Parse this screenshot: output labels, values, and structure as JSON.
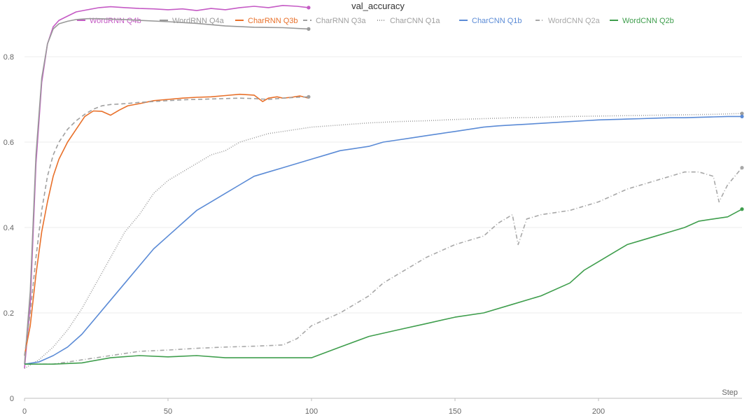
{
  "chart_data": {
    "type": "line",
    "title": "val_accuracy",
    "xlabel": "Step",
    "ylabel": "",
    "xlim": [
      0,
      250
    ],
    "ylim": [
      0,
      0.9
    ],
    "x_ticks": [
      0,
      50,
      100,
      150,
      200
    ],
    "y_ticks": [
      0,
      0.2,
      0.4,
      0.6,
      0.8
    ],
    "grid": "horizontal",
    "legend_position": "top",
    "series": [
      {
        "name": "WordRNN Q4b",
        "color": "#c55bc5",
        "dash": "solid",
        "end_marker": true,
        "x": [
          0,
          2,
          4,
          6,
          8,
          10,
          12,
          15,
          18,
          22,
          26,
          30,
          35,
          40,
          45,
          50,
          55,
          60,
          65,
          70,
          75,
          80,
          85,
          90,
          95,
          99
        ],
        "y": [
          0.07,
          0.22,
          0.55,
          0.74,
          0.83,
          0.87,
          0.885,
          0.895,
          0.905,
          0.91,
          0.915,
          0.917,
          0.915,
          0.913,
          0.912,
          0.91,
          0.912,
          0.908,
          0.913,
          0.91,
          0.915,
          0.918,
          0.915,
          0.92,
          0.918,
          0.915
        ]
      },
      {
        "name": "WordRNN Q4a",
        "color": "#999999",
        "dash": "solid",
        "end_marker": true,
        "x": [
          0,
          2,
          4,
          6,
          8,
          10,
          12,
          15,
          18,
          22,
          26,
          30,
          35,
          40,
          50,
          60,
          70,
          80,
          90,
          99
        ],
        "y": [
          0.08,
          0.25,
          0.57,
          0.75,
          0.83,
          0.865,
          0.877,
          0.883,
          0.887,
          0.889,
          0.889,
          0.888,
          0.887,
          0.885,
          0.882,
          0.878,
          0.872,
          0.869,
          0.868,
          0.865
        ]
      },
      {
        "name": "CharRNN Q3b",
        "color": "#e8702a",
        "dash": "solid",
        "end_marker": false,
        "x": [
          0,
          2,
          4,
          6,
          8,
          10,
          12,
          15,
          18,
          21,
          24,
          27,
          30,
          33,
          36,
          40,
          45,
          50,
          55,
          60,
          65,
          70,
          75,
          80,
          83,
          85,
          88,
          90,
          93,
          96,
          99
        ],
        "y": [
          0.1,
          0.17,
          0.29,
          0.39,
          0.46,
          0.52,
          0.56,
          0.6,
          0.63,
          0.66,
          0.673,
          0.672,
          0.663,
          0.675,
          0.685,
          0.69,
          0.697,
          0.7,
          0.703,
          0.705,
          0.706,
          0.709,
          0.712,
          0.71,
          0.695,
          0.703,
          0.706,
          0.703,
          0.705,
          0.708,
          0.703
        ]
      },
      {
        "name": "CharRNN Q3a",
        "color": "#a0a0a0",
        "dash": "6,4",
        "end_marker": true,
        "x": [
          0,
          2,
          4,
          6,
          8,
          10,
          12,
          15,
          18,
          21,
          24,
          27,
          30,
          35,
          40,
          45,
          50,
          55,
          60,
          65,
          70,
          75,
          80,
          85,
          90,
          95,
          99
        ],
        "y": [
          0.1,
          0.2,
          0.33,
          0.44,
          0.52,
          0.57,
          0.6,
          0.63,
          0.65,
          0.665,
          0.677,
          0.685,
          0.688,
          0.69,
          0.693,
          0.695,
          0.697,
          0.699,
          0.7,
          0.701,
          0.702,
          0.703,
          0.702,
          0.7,
          0.703,
          0.705,
          0.706
        ]
      },
      {
        "name": "CharCNN Q1a",
        "color": "#9e9e9e",
        "dash": "1,2",
        "end_marker": true,
        "x": [
          0,
          5,
          10,
          15,
          20,
          25,
          30,
          35,
          40,
          45,
          50,
          55,
          60,
          65,
          70,
          75,
          80,
          85,
          90,
          95,
          100,
          110,
          120,
          130,
          140,
          150,
          160,
          170,
          180,
          190,
          200,
          210,
          220,
          230,
          240,
          250
        ],
        "y": [
          0.07,
          0.09,
          0.12,
          0.16,
          0.21,
          0.27,
          0.33,
          0.39,
          0.43,
          0.48,
          0.51,
          0.53,
          0.55,
          0.57,
          0.58,
          0.6,
          0.61,
          0.62,
          0.625,
          0.63,
          0.635,
          0.64,
          0.645,
          0.648,
          0.65,
          0.653,
          0.655,
          0.657,
          0.658,
          0.66,
          0.661,
          0.662,
          0.663,
          0.664,
          0.665,
          0.667
        ]
      },
      {
        "name": "CharCNN Q1b",
        "color": "#5b8bd6",
        "dash": "solid",
        "end_marker": true,
        "x": [
          0,
          5,
          10,
          15,
          20,
          25,
          30,
          35,
          40,
          45,
          50,
          55,
          60,
          65,
          70,
          75,
          80,
          85,
          90,
          95,
          100,
          105,
          110,
          115,
          120,
          125,
          130,
          135,
          140,
          145,
          150,
          155,
          160,
          165,
          170,
          175,
          180,
          185,
          190,
          195,
          200,
          205,
          210,
          215,
          220,
          225,
          230,
          235,
          240,
          245,
          250
        ],
        "y": [
          0.08,
          0.085,
          0.1,
          0.12,
          0.15,
          0.19,
          0.23,
          0.27,
          0.31,
          0.35,
          0.38,
          0.41,
          0.44,
          0.46,
          0.48,
          0.5,
          0.52,
          0.53,
          0.54,
          0.55,
          0.56,
          0.57,
          0.58,
          0.585,
          0.59,
          0.6,
          0.605,
          0.61,
          0.615,
          0.62,
          0.625,
          0.63,
          0.635,
          0.638,
          0.64,
          0.642,
          0.644,
          0.646,
          0.648,
          0.65,
          0.652,
          0.653,
          0.654,
          0.655,
          0.656,
          0.657,
          0.657,
          0.658,
          0.659,
          0.66,
          0.66
        ]
      },
      {
        "name": "WordCNN Q2a",
        "color": "#a8a8a8",
        "dash": "6,3,1,3",
        "end_marker": true,
        "x": [
          0,
          10,
          20,
          30,
          40,
          50,
          60,
          70,
          80,
          90,
          95,
          100,
          110,
          120,
          125,
          130,
          135,
          140,
          150,
          160,
          165,
          170,
          172,
          175,
          180,
          190,
          200,
          210,
          220,
          230,
          235,
          240,
          242,
          245,
          250
        ],
        "y": [
          0.08,
          0.08,
          0.09,
          0.1,
          0.11,
          0.113,
          0.117,
          0.12,
          0.122,
          0.125,
          0.14,
          0.17,
          0.2,
          0.24,
          0.27,
          0.29,
          0.31,
          0.33,
          0.36,
          0.38,
          0.41,
          0.43,
          0.36,
          0.42,
          0.43,
          0.44,
          0.46,
          0.49,
          0.51,
          0.53,
          0.53,
          0.52,
          0.46,
          0.5,
          0.54
        ]
      },
      {
        "name": "WordCNN Q2b",
        "color": "#3f9e4d",
        "dash": "solid",
        "end_marker": true,
        "x": [
          0,
          10,
          20,
          30,
          40,
          50,
          60,
          70,
          80,
          90,
          100,
          110,
          120,
          130,
          140,
          150,
          160,
          170,
          180,
          190,
          195,
          200,
          205,
          210,
          215,
          220,
          225,
          230,
          235,
          240,
          245,
          250
        ],
        "y": [
          0.08,
          0.08,
          0.083,
          0.095,
          0.1,
          0.097,
          0.1,
          0.095,
          0.095,
          0.095,
          0.095,
          0.12,
          0.145,
          0.16,
          0.175,
          0.19,
          0.2,
          0.22,
          0.24,
          0.27,
          0.3,
          0.32,
          0.34,
          0.36,
          0.37,
          0.38,
          0.39,
          0.4,
          0.415,
          0.42,
          0.425,
          0.443
        ]
      }
    ]
  }
}
